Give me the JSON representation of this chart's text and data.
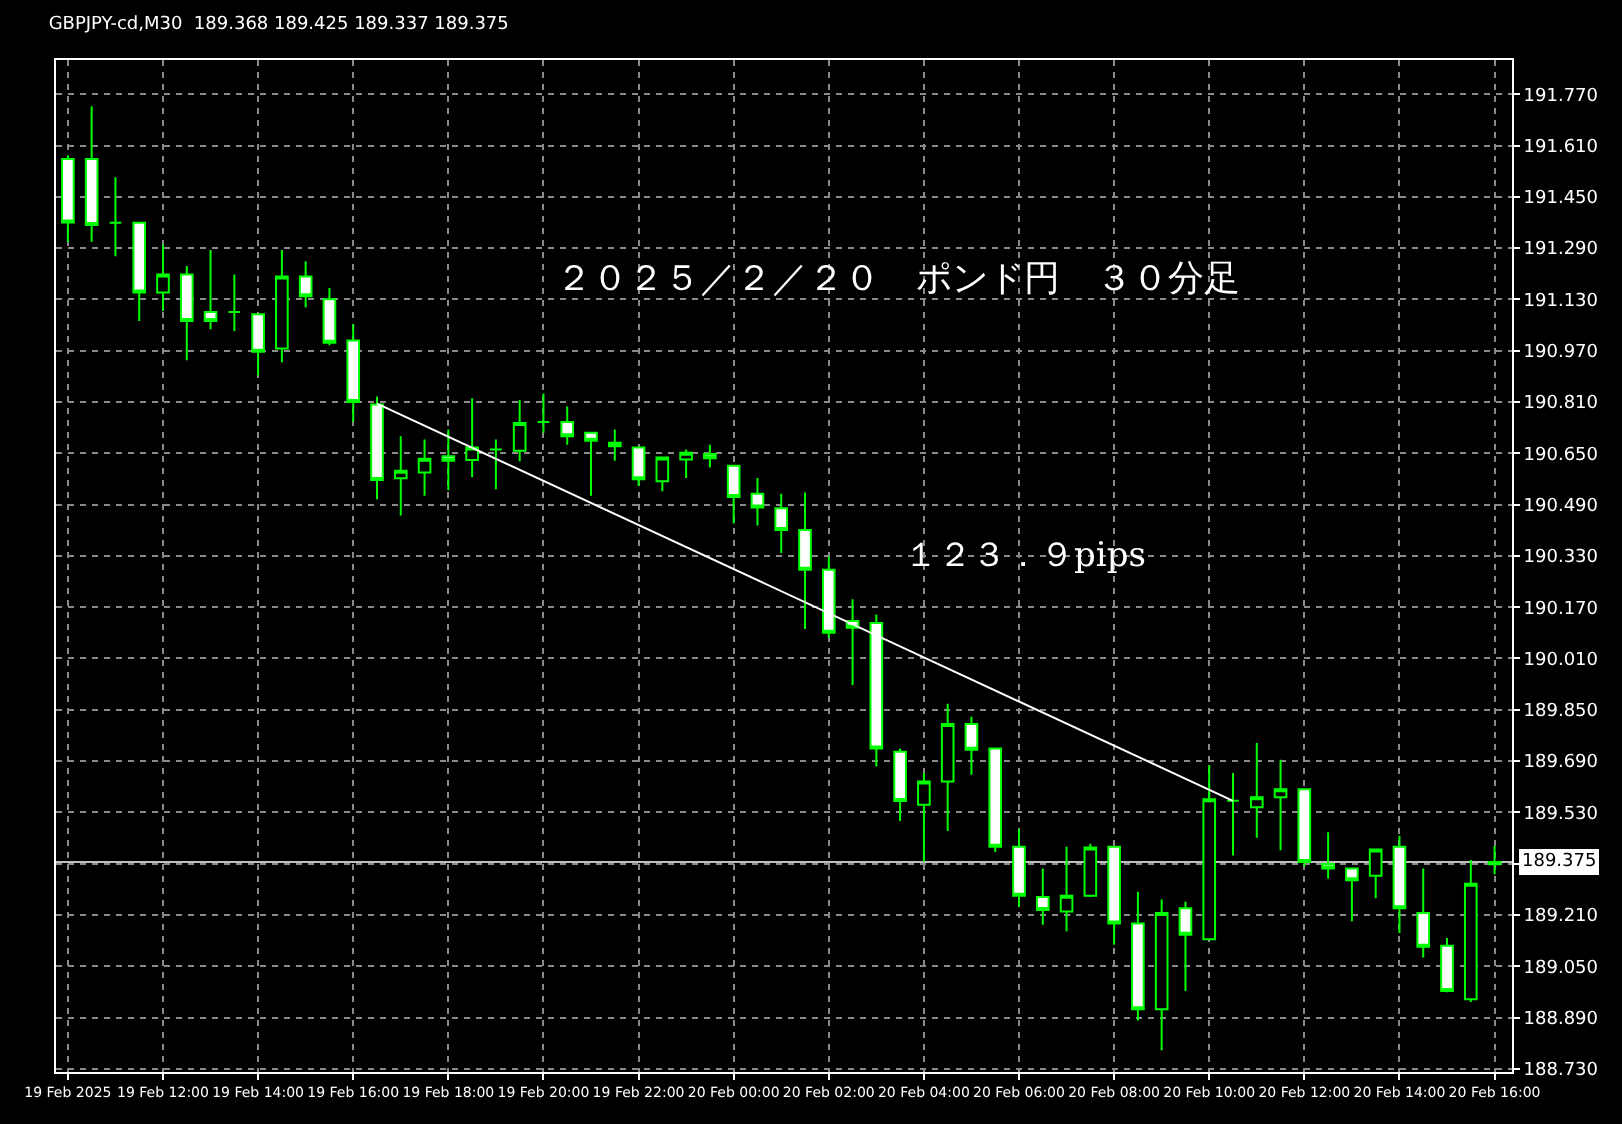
{
  "chart_data": {
    "type": "candlestick",
    "title": "GBPJPY-cd,M30  189.368 189.425 189.337 189.375",
    "x": [
      "2025-02-19T10:00",
      "2025-02-19T10:30",
      "2025-02-19T11:00",
      "2025-02-19T11:30",
      "2025-02-19T12:00",
      "2025-02-19T12:30",
      "2025-02-19T13:00",
      "2025-02-19T13:30",
      "2025-02-19T14:00",
      "2025-02-19T14:30",
      "2025-02-19T15:00",
      "2025-02-19T15:30",
      "2025-02-19T16:00",
      "2025-02-19T16:30",
      "2025-02-19T17:00",
      "2025-02-19T17:30",
      "2025-02-19T18:00",
      "2025-02-19T18:30",
      "2025-02-19T19:00",
      "2025-02-19T19:30",
      "2025-02-19T20:00",
      "2025-02-19T20:30",
      "2025-02-19T21:00",
      "2025-02-19T21:30",
      "2025-02-19T22:00",
      "2025-02-19T22:30",
      "2025-02-19T23:00",
      "2025-02-19T23:30",
      "2025-02-20T00:00",
      "2025-02-20T00:30",
      "2025-02-20T01:00",
      "2025-02-20T01:30",
      "2025-02-20T02:00",
      "2025-02-20T02:30",
      "2025-02-20T03:00",
      "2025-02-20T03:30",
      "2025-02-20T04:00",
      "2025-02-20T04:30",
      "2025-02-20T05:00",
      "2025-02-20T05:30",
      "2025-02-20T06:00",
      "2025-02-20T06:30",
      "2025-02-20T07:00",
      "2025-02-20T07:30",
      "2025-02-20T08:00",
      "2025-02-20T08:30",
      "2025-02-20T09:00",
      "2025-02-20T09:30",
      "2025-02-20T10:00",
      "2025-02-20T10:30",
      "2025-02-20T11:00",
      "2025-02-20T11:30",
      "2025-02-20T12:00",
      "2025-02-20T12:30",
      "2025-02-20T13:00",
      "2025-02-20T13:30",
      "2025-02-20T14:00",
      "2025-02-20T14:30",
      "2025-02-20T15:00",
      "2025-02-20T15:30",
      "2025-02-20T16:00"
    ],
    "xlim": [
      "2025-02-19T09:45",
      "2025-02-20T16:22"
    ],
    "xticks": [
      {
        "value": "2025-02-19T10:00",
        "label": "19 Feb 2025"
      },
      {
        "value": "2025-02-19T12:00",
        "label": "19 Feb 12:00"
      },
      {
        "value": "2025-02-19T14:00",
        "label": "19 Feb 14:00"
      },
      {
        "value": "2025-02-19T16:00",
        "label": "19 Feb 16:00"
      },
      {
        "value": "2025-02-19T18:00",
        "label": "19 Feb 18:00"
      },
      {
        "value": "2025-02-19T20:00",
        "label": "19 Feb 20:00"
      },
      {
        "value": "2025-02-19T22:00",
        "label": "19 Feb 22:00"
      },
      {
        "value": "2025-02-20T00:00",
        "label": "20 Feb 00:00"
      },
      {
        "value": "2025-02-20T02:00",
        "label": "20 Feb 02:00"
      },
      {
        "value": "2025-02-20T04:00",
        "label": "20 Feb 04:00"
      },
      {
        "value": "2025-02-20T06:00",
        "label": "20 Feb 06:00"
      },
      {
        "value": "2025-02-20T08:00",
        "label": "20 Feb 08:00"
      },
      {
        "value": "2025-02-20T10:00",
        "label": "20 Feb 10:00"
      },
      {
        "value": "2025-02-20T12:00",
        "label": "20 Feb 12:00"
      },
      {
        "value": "2025-02-20T14:00",
        "label": "20 Feb 14:00"
      },
      {
        "value": "2025-02-20T16:00",
        "label": "20 Feb 16:00"
      }
    ],
    "ohlc": [
      [
        191.568,
        191.58,
        191.309,
        191.37
      ],
      [
        191.568,
        191.733,
        191.31,
        191.362
      ],
      [
        191.369,
        191.511,
        191.265,
        191.369
      ],
      [
        191.369,
        191.369,
        191.063,
        191.152
      ],
      [
        191.152,
        191.301,
        191.094,
        191.208
      ],
      [
        191.208,
        191.234,
        190.94,
        191.063
      ],
      [
        191.091,
        191.284,
        191.037,
        191.063
      ],
      [
        191.091,
        191.208,
        191.032,
        191.091
      ],
      [
        191.084,
        191.084,
        190.893,
        190.967
      ],
      [
        190.977,
        191.284,
        190.934,
        191.202
      ],
      [
        191.202,
        191.249,
        191.105,
        191.14
      ],
      [
        191.131,
        191.166,
        190.987,
        190.995
      ],
      [
        191.002,
        191.053,
        190.748,
        190.81
      ],
      [
        190.802,
        190.827,
        190.507,
        190.567
      ],
      [
        190.572,
        190.703,
        190.456,
        190.596
      ],
      [
        190.59,
        190.693,
        190.518,
        190.633
      ],
      [
        190.641,
        190.724,
        190.535,
        190.627
      ],
      [
        190.629,
        190.822,
        190.575,
        190.668
      ],
      [
        190.662,
        190.693,
        190.538,
        190.662
      ],
      [
        190.658,
        190.816,
        190.625,
        190.745
      ],
      [
        190.748,
        190.837,
        190.714,
        190.748
      ],
      [
        190.748,
        190.796,
        190.677,
        190.703
      ],
      [
        190.714,
        190.714,
        190.518,
        190.689
      ],
      [
        190.683,
        190.724,
        190.627,
        190.672
      ],
      [
        190.668,
        190.668,
        190.549,
        190.569
      ],
      [
        190.563,
        190.637,
        190.532,
        190.637
      ],
      [
        190.631,
        190.662,
        190.573,
        190.652
      ],
      [
        190.648,
        190.677,
        190.606,
        190.635
      ],
      [
        190.611,
        190.611,
        190.431,
        190.514
      ],
      [
        190.524,
        190.573,
        190.425,
        190.481
      ],
      [
        190.479,
        190.524,
        190.339,
        190.411
      ],
      [
        190.411,
        190.528,
        190.102,
        190.287
      ],
      [
        190.287,
        190.328,
        190.075,
        190.09
      ],
      [
        190.127,
        190.195,
        189.927,
        190.106
      ],
      [
        190.121,
        190.147,
        189.673,
        189.729
      ],
      [
        189.719,
        189.729,
        189.503,
        189.565
      ],
      [
        189.554,
        189.653,
        189.375,
        189.626
      ],
      [
        189.626,
        189.869,
        189.472,
        189.806
      ],
      [
        189.806,
        189.828,
        189.647,
        189.725
      ],
      [
        189.729,
        189.729,
        189.406,
        189.423
      ],
      [
        189.423,
        189.478,
        189.235,
        189.27
      ],
      [
        189.266,
        189.355,
        189.179,
        189.225
      ],
      [
        189.221,
        189.423,
        189.159,
        189.27
      ],
      [
        189.27,
        189.432,
        189.266,
        189.42
      ],
      [
        189.423,
        189.423,
        189.117,
        189.183
      ],
      [
        189.183,
        189.282,
        188.881,
        188.916
      ],
      [
        188.916,
        189.258,
        188.788,
        189.216
      ],
      [
        189.231,
        189.251,
        188.973,
        189.148
      ],
      [
        189.134,
        189.678,
        189.134,
        189.571
      ],
      [
        189.566,
        189.653,
        189.395,
        189.566
      ],
      [
        189.546,
        189.746,
        189.451,
        189.577
      ],
      [
        189.577,
        189.694,
        189.412,
        189.602
      ],
      [
        189.602,
        189.602,
        189.361,
        189.375
      ],
      [
        189.369,
        189.468,
        189.324,
        189.355
      ],
      [
        189.355,
        189.355,
        189.19,
        189.318
      ],
      [
        189.332,
        189.414,
        189.262,
        189.414
      ],
      [
        189.423,
        189.457,
        189.154,
        189.231
      ],
      [
        189.216,
        189.355,
        189.077,
        189.111
      ],
      [
        189.114,
        189.138,
        188.969,
        188.973
      ],
      [
        188.947,
        189.381,
        188.938,
        189.307
      ],
      [
        189.368,
        189.425,
        189.337,
        189.375
      ]
    ],
    "series": [
      {
        "type": "line",
        "color": "#ffffff",
        "x": [
          "2025-02-19T16:30",
          "2025-02-20T10:30"
        ],
        "values": [
          190.805,
          189.566
        ]
      }
    ],
    "ylim": [
      188.72,
      191.877
    ],
    "yticks": [
      {
        "value": 188.73,
        "label": "188.730"
      },
      {
        "value": 188.89,
        "label": "188.890"
      },
      {
        "value": 189.05,
        "label": "189.050"
      },
      {
        "value": 189.21,
        "label": "189.210"
      },
      {
        "value": 189.37,
        "label": null
      },
      {
        "value": 189.53,
        "label": "189.530"
      },
      {
        "value": 189.69,
        "label": "189.690"
      },
      {
        "value": 189.85,
        "label": "189.850"
      },
      {
        "value": 190.01,
        "label": "190.010"
      },
      {
        "value": 190.17,
        "label": "190.170"
      },
      {
        "value": 190.33,
        "label": "190.330"
      },
      {
        "value": 190.49,
        "label": "190.490"
      },
      {
        "value": 190.65,
        "label": "190.650"
      },
      {
        "value": 190.81,
        "label": "190.810"
      },
      {
        "value": 190.97,
        "label": "190.970"
      },
      {
        "value": 191.13,
        "label": "191.130"
      },
      {
        "value": 191.29,
        "label": "191.290"
      },
      {
        "value": 191.45,
        "label": "191.450"
      },
      {
        "value": 191.61,
        "label": "191.610"
      },
      {
        "value": 191.77,
        "label": "191.770"
      }
    ],
    "grid": true,
    "ref_lines": [
      {
        "axis": "y",
        "value": 189.375,
        "label": "189.375",
        "color": "#c0c0c0"
      }
    ],
    "annotations": [
      "２０２５／２／２０　ポンド円　３０分足",
      "１２３．９pips"
    ]
  }
}
